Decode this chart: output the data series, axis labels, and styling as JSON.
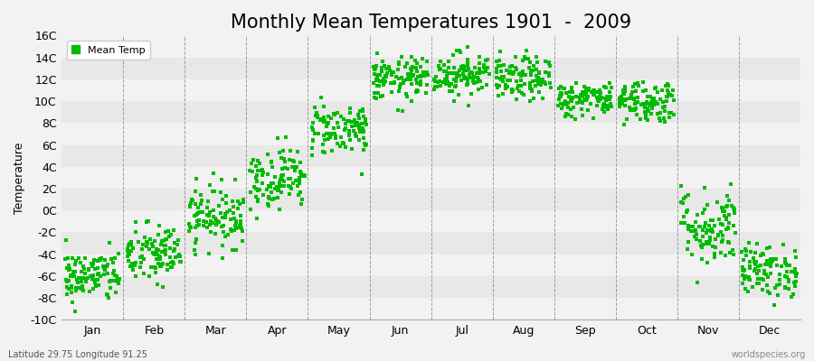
{
  "title": "Monthly Mean Temperatures 1901  -  2009",
  "ylabel": "Temperature",
  "subtitle_left": "Latitude 29.75 Longitude 91.25",
  "subtitle_right": "worldspecies.org",
  "legend_label": "Mean Temp",
  "ylim": [
    -10,
    16
  ],
  "yticks": [
    -10,
    -8,
    -6,
    -4,
    -2,
    0,
    2,
    4,
    6,
    8,
    10,
    12,
    14,
    16
  ],
  "ytick_labels": [
    "-10C",
    "-8C",
    "-6C",
    "-4C",
    "-2C",
    "0C",
    "2C",
    "4C",
    "6C",
    "8C",
    "10C",
    "12C",
    "14C",
    "16C"
  ],
  "months": [
    "Jan",
    "Feb",
    "Mar",
    "Apr",
    "May",
    "Jun",
    "Jul",
    "Aug",
    "Sep",
    "Oct",
    "Nov",
    "Dec"
  ],
  "marker_color": "#00bb00",
  "bg_color": "#f2f2f2",
  "hband_colors": [
    "#f2f2f2",
    "#e8e8e8"
  ],
  "title_fontsize": 15,
  "axis_fontsize": 9,
  "monthly_means": [
    -6.0,
    -4.0,
    -0.5,
    3.0,
    7.5,
    12.0,
    12.5,
    12.0,
    10.2,
    10.0,
    -1.5,
    -5.5
  ],
  "monthly_stds": [
    1.2,
    1.4,
    1.4,
    1.4,
    1.2,
    1.0,
    1.0,
    1.0,
    0.8,
    1.0,
    1.8,
    1.2
  ],
  "n_years": 109
}
